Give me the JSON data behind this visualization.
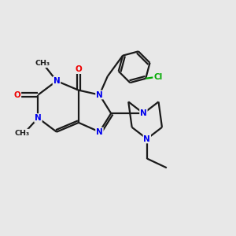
{
  "background_color": "#e8e8e8",
  "bond_color": "#1a1a1a",
  "N_color": "#0000ee",
  "O_color": "#ee0000",
  "Cl_color": "#00aa00",
  "figsize": [
    3.0,
    3.0
  ],
  "dpi": 100,
  "xlim": [
    0,
    10
  ],
  "ylim": [
    0,
    10
  ]
}
